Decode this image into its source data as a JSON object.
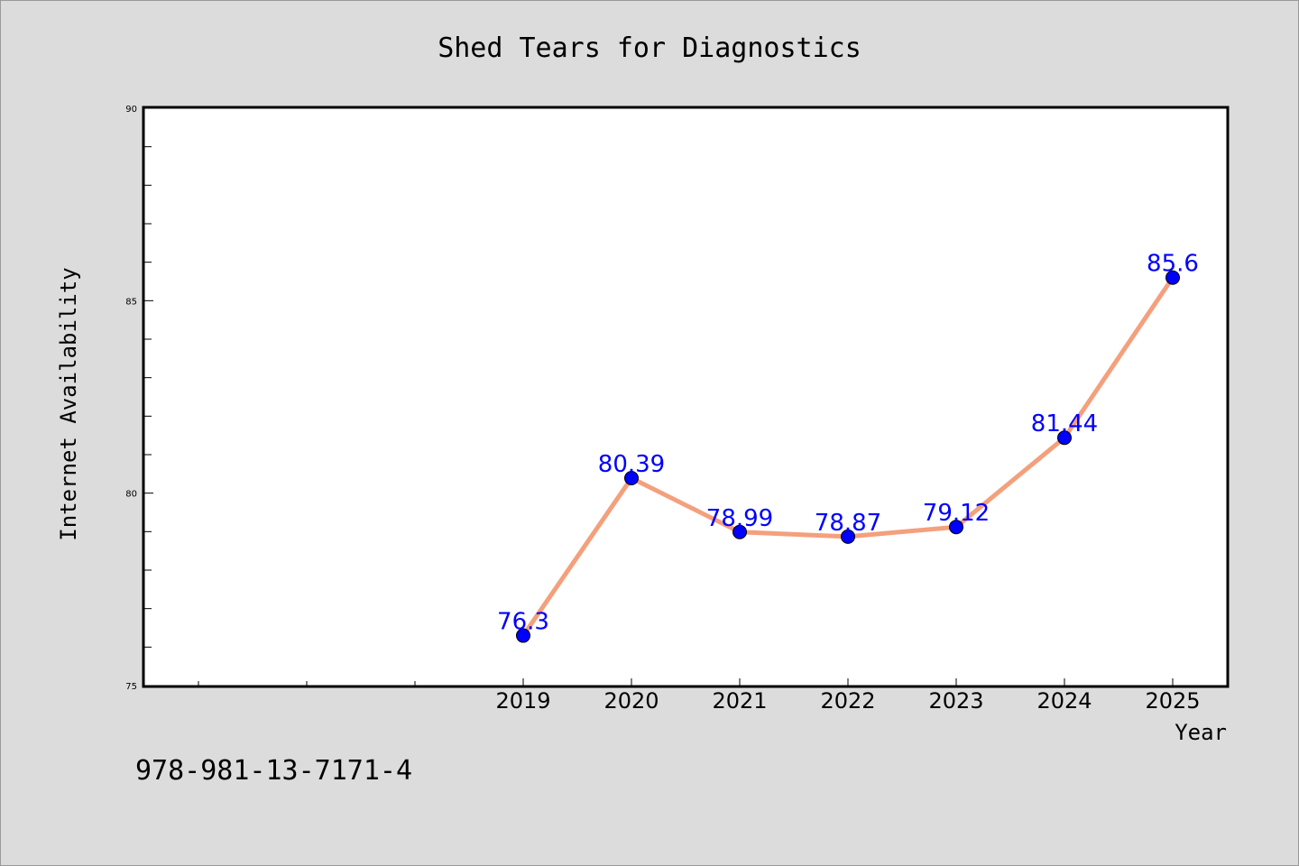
{
  "chart_data": {
    "type": "line",
    "title": "Shed Tears for Diagnostics",
    "xlabel": "Year",
    "ylabel": "Internet Availability",
    "x": [
      "2019",
      "2020",
      "2021",
      "2022",
      "2023",
      "2024",
      "2025"
    ],
    "series": [
      {
        "values": [
          76.3,
          80.39,
          78.99,
          78.87,
          79.12,
          81.44,
          85.6
        ]
      }
    ],
    "data_labels": [
      "76.3",
      "80.39",
      "78.99",
      "78.87",
      "79.12",
      "81.44",
      "85.6"
    ],
    "ylim": [
      75,
      90
    ],
    "yticks": [
      "75",
      "80",
      "85",
      "90"
    ],
    "grid": false,
    "line_color": "#f4a07c",
    "marker_color": "#0000ff",
    "label_color": "#0000ff"
  },
  "footer": {
    "isbn": "978-981-13-7171-4"
  }
}
